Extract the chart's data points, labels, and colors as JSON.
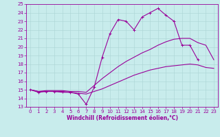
{
  "background_color": "#c8ecec",
  "grid_color": "#aad4d4",
  "line_color": "#990099",
  "markersize": 2.5,
  "linewidth": 0.8,
  "xlim": [
    -0.5,
    23.5
  ],
  "ylim": [
    13,
    25
  ],
  "xlabel": "Windchill (Refroidissement éolien,°C)",
  "xlabel_fontsize": 5.5,
  "tick_fontsize": 5.0,
  "series1_x": [
    0,
    1,
    2,
    3,
    4,
    5,
    6,
    7,
    8,
    9,
    10,
    11,
    12,
    13,
    14,
    15,
    16,
    17,
    18,
    19,
    20,
    21,
    22,
    23
  ],
  "series1_y": [
    15.0,
    14.7,
    14.8,
    14.8,
    14.8,
    14.7,
    14.5,
    13.3,
    15.3,
    18.8,
    21.6,
    23.2,
    23.0,
    22.0,
    23.5,
    24.0,
    24.5,
    23.7,
    23.0,
    20.2,
    20.2,
    18.5,
    null,
    null
  ],
  "series2_x": [
    0,
    1,
    2,
    3,
    4,
    5,
    6,
    7,
    8,
    9,
    10,
    11,
    12,
    13,
    14,
    15,
    16,
    17,
    18,
    19,
    20,
    21,
    22,
    23
  ],
  "series2_y": [
    15.0,
    14.8,
    14.8,
    14.8,
    14.7,
    14.7,
    14.6,
    14.5,
    14.8,
    15.1,
    15.5,
    15.9,
    16.3,
    16.7,
    17.0,
    17.3,
    17.5,
    17.7,
    17.8,
    17.9,
    18.0,
    17.9,
    17.6,
    17.5
  ],
  "series3_x": [
    0,
    1,
    2,
    3,
    4,
    5,
    6,
    7,
    8,
    9,
    10,
    11,
    12,
    13,
    14,
    15,
    16,
    17,
    18,
    19,
    20,
    21,
    22,
    23
  ],
  "series3_y": [
    15.0,
    14.8,
    14.9,
    14.9,
    14.9,
    14.8,
    14.8,
    14.7,
    15.5,
    16.3,
    17.0,
    17.7,
    18.3,
    18.8,
    19.3,
    19.7,
    20.2,
    20.6,
    20.9,
    21.0,
    21.0,
    20.5,
    20.2,
    18.5
  ]
}
